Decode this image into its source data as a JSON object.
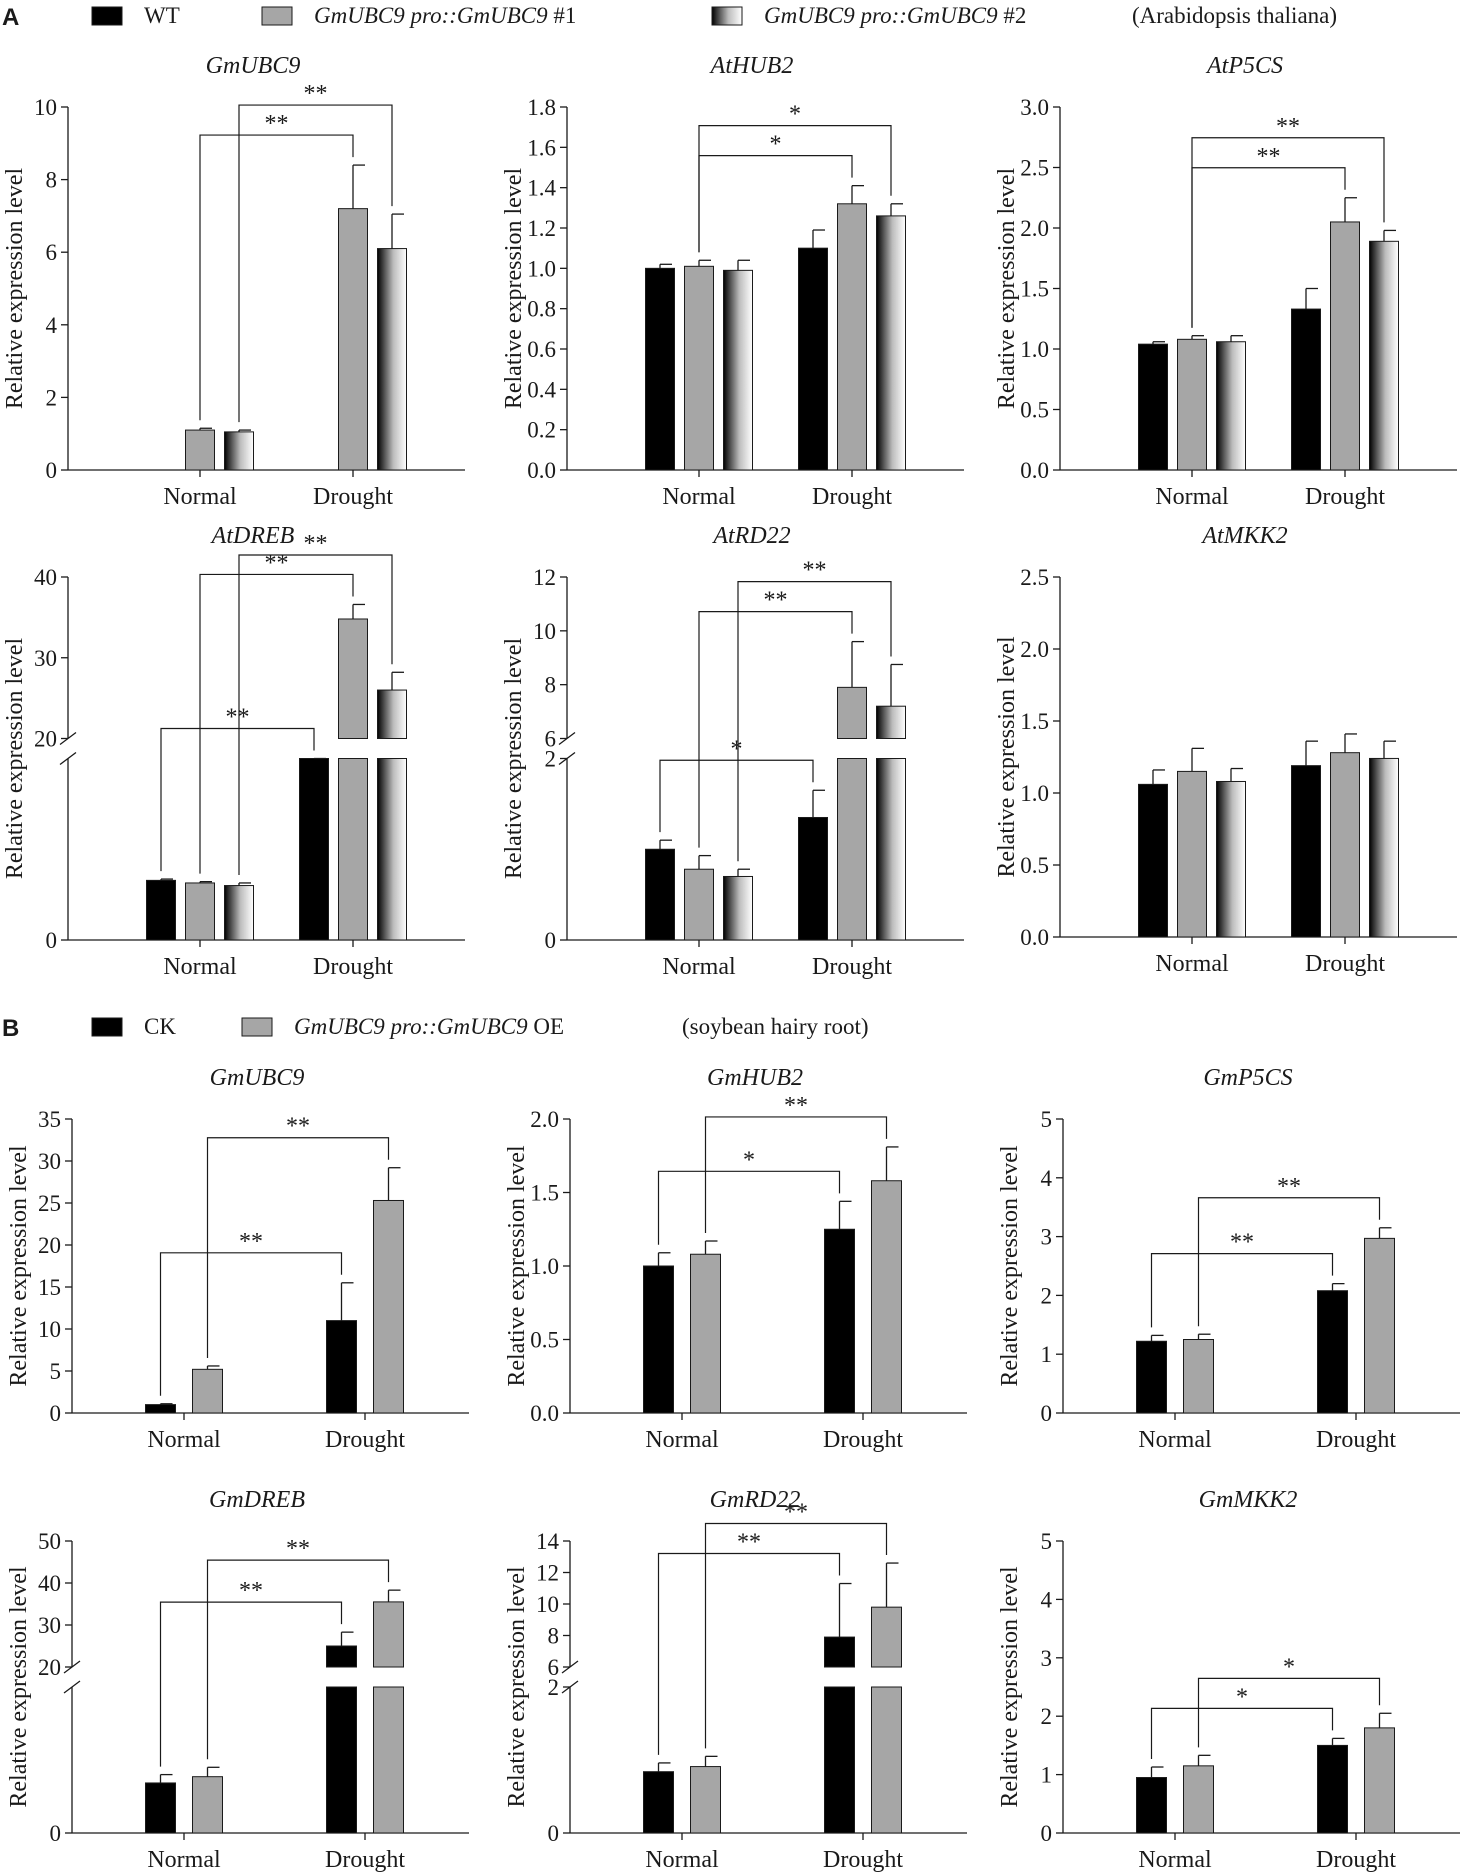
{
  "figure": {
    "panel_a_letter": "A",
    "panel_b_letter": "B",
    "legend_a": [
      {
        "label": "WT",
        "italic": false,
        "fill": "black"
      },
      {
        "label": "GmUBC9 pro::GmUBC9",
        "suffix": " #1",
        "italic": true,
        "fill": "gray"
      },
      {
        "label": "GmUBC9 pro::GmUBC9",
        "suffix": " #2",
        "italic": true,
        "fill": "gradient"
      }
    ],
    "legend_a_note": "(Arabidopsis thaliana)",
    "legend_b": [
      {
        "label": "CK",
        "italic": false,
        "fill": "black"
      },
      {
        "label": "GmUBC9 pro::GmUBC9",
        "suffix": " OE",
        "italic": true,
        "fill": "gray"
      }
    ],
    "legend_b_note": "(soybean hairy root)",
    "colors": {
      "black": "#000000",
      "gray": "#a6a6a6",
      "axis": "#1a1a1a"
    }
  },
  "chart_data": [
    {
      "panel": "A",
      "type": "bar",
      "title": "GmUBC9",
      "ylabel": "Relative expression level",
      "categories": [
        "Normal",
        "Drought"
      ],
      "ylim": [
        0,
        10
      ],
      "yticks": [
        0,
        2,
        4,
        6,
        8,
        10
      ],
      "series": [
        {
          "name": "WT",
          "values": [
            0,
            0
          ],
          "errors": [
            0,
            0
          ]
        },
        {
          "name": "GmUBC9 pro::GmUBC9 #1",
          "values": [
            1.1,
            7.2
          ],
          "errors": [
            0.05,
            1.2
          ]
        },
        {
          "name": "GmUBC9 pro::GmUBC9 #2",
          "values": [
            1.05,
            6.1
          ],
          "errors": [
            0.05,
            0.95
          ]
        }
      ],
      "significance": [
        {
          "from": [
            0,
            1
          ],
          "to": [
            1,
            1
          ],
          "label": "**"
        },
        {
          "from": [
            0,
            2
          ],
          "to": [
            1,
            2
          ],
          "label": "**"
        }
      ]
    },
    {
      "panel": "A",
      "type": "bar",
      "title": "AtHUB2",
      "ylabel": "Relative expression level",
      "categories": [
        "Normal",
        "Drought"
      ],
      "ylim": [
        0,
        1.8
      ],
      "yticks": [
        0.0,
        0.2,
        0.4,
        0.6,
        0.8,
        1.0,
        1.2,
        1.4,
        1.6,
        1.8
      ],
      "series": [
        {
          "name": "WT",
          "values": [
            1.0,
            1.1
          ],
          "errors": [
            0.02,
            0.09
          ]
        },
        {
          "name": "GmUBC9 pro::GmUBC9 #1",
          "values": [
            1.01,
            1.32
          ],
          "errors": [
            0.03,
            0.09
          ]
        },
        {
          "name": "GmUBC9 pro::GmUBC9 #2",
          "values": [
            0.99,
            1.26
          ],
          "errors": [
            0.05,
            0.06
          ]
        }
      ],
      "significance": [
        {
          "from": [
            0,
            1
          ],
          "to": [
            1,
            1
          ],
          "label": "*"
        },
        {
          "from": [
            0,
            1
          ],
          "to": [
            1,
            2
          ],
          "label": "*"
        }
      ]
    },
    {
      "panel": "A",
      "type": "bar",
      "title": "AtP5CS",
      "ylabel": "Relative expression level",
      "categories": [
        "Normal",
        "Drought"
      ],
      "ylim": [
        0,
        3.0
      ],
      "yticks": [
        0.0,
        0.5,
        1.0,
        1.5,
        2.0,
        2.5,
        3.0
      ],
      "series": [
        {
          "name": "WT",
          "values": [
            1.04,
            1.33
          ],
          "errors": [
            0.02,
            0.17
          ]
        },
        {
          "name": "GmUBC9 pro::GmUBC9 #1",
          "values": [
            1.08,
            2.05
          ],
          "errors": [
            0.03,
            0.2
          ]
        },
        {
          "name": "GmUBC9 pro::GmUBC9 #2",
          "values": [
            1.06,
            1.89
          ],
          "errors": [
            0.05,
            0.09
          ]
        }
      ],
      "significance": [
        {
          "from": [
            0,
            1
          ],
          "to": [
            1,
            1
          ],
          "label": "**"
        },
        {
          "from": [
            0,
            1
          ],
          "to": [
            1,
            2
          ],
          "label": "**"
        }
      ]
    },
    {
      "panel": "A",
      "type": "bar",
      "title": "AtDREB",
      "ylabel": "Relative expression level",
      "categories": [
        "Normal",
        "Drought"
      ],
      "ylim": [
        0,
        40
      ],
      "yticks": [
        0,
        20,
        30,
        40
      ],
      "axis_break": [
        7,
        20
      ],
      "series": [
        {
          "name": "WT",
          "values": [
            2.3,
            7.0
          ],
          "errors": [
            0.05,
            0.05
          ]
        },
        {
          "name": "GmUBC9 pro::GmUBC9 #1",
          "values": [
            2.2,
            34.8
          ],
          "errors": [
            0.05,
            1.8
          ]
        },
        {
          "name": "GmUBC9 pro::GmUBC9 #2",
          "values": [
            2.1,
            26.0
          ],
          "errors": [
            0.1,
            2.2
          ]
        }
      ],
      "significance": [
        {
          "from": [
            0,
            0
          ],
          "to": [
            1,
            0
          ],
          "label": "**"
        },
        {
          "from": [
            0,
            1
          ],
          "to": [
            1,
            1
          ],
          "label": "**"
        },
        {
          "from": [
            0,
            2
          ],
          "to": [
            1,
            2
          ],
          "label": "**"
        }
      ]
    },
    {
      "panel": "A",
      "type": "bar",
      "title": "AtRD22",
      "ylabel": "Relative expression level",
      "categories": [
        "Normal",
        "Drought"
      ],
      "ylim": [
        0,
        12
      ],
      "yticks": [
        0,
        2,
        6,
        8,
        10,
        12
      ],
      "axis_break": [
        2,
        6
      ],
      "series": [
        {
          "name": "WT",
          "values": [
            1.0,
            1.35
          ],
          "errors": [
            0.1,
            0.3
          ]
        },
        {
          "name": "GmUBC9 pro::GmUBC9 #1",
          "values": [
            0.78,
            7.9
          ],
          "errors": [
            0.15,
            1.7
          ]
        },
        {
          "name": "GmUBC9 pro::GmUBC9 #2",
          "values": [
            0.7,
            7.2
          ],
          "errors": [
            0.08,
            1.55
          ]
        }
      ],
      "significance": [
        {
          "from": [
            0,
            0
          ],
          "to": [
            1,
            0
          ],
          "label": "*"
        },
        {
          "from": [
            0,
            1
          ],
          "to": [
            1,
            1
          ],
          "label": "**"
        },
        {
          "from": [
            0,
            2
          ],
          "to": [
            1,
            2
          ],
          "label": "**"
        }
      ]
    },
    {
      "panel": "A",
      "type": "bar",
      "title": "AtMKK2",
      "ylabel": "Relative expression level",
      "categories": [
        "Normal",
        "Drought"
      ],
      "ylim": [
        0,
        2.5
      ],
      "yticks": [
        0.0,
        0.5,
        1.0,
        1.5,
        2.0,
        2.5
      ],
      "series": [
        {
          "name": "WT",
          "values": [
            1.06,
            1.19
          ],
          "errors": [
            0.1,
            0.17
          ]
        },
        {
          "name": "GmUBC9 pro::GmUBC9 #1",
          "values": [
            1.15,
            1.28
          ],
          "errors": [
            0.16,
            0.13
          ]
        },
        {
          "name": "GmUBC9 pro::GmUBC9 #2",
          "values": [
            1.08,
            1.24
          ],
          "errors": [
            0.09,
            0.12
          ]
        }
      ],
      "significance": []
    },
    {
      "panel": "B",
      "type": "bar",
      "title": "GmUBC9",
      "ylabel": "Relative expression level",
      "categories": [
        "Normal",
        "Drought"
      ],
      "ylim": [
        0,
        35
      ],
      "yticks": [
        0,
        5,
        10,
        15,
        20,
        25,
        30,
        35
      ],
      "series": [
        {
          "name": "CK",
          "values": [
            1.0,
            11.0
          ],
          "errors": [
            0.1,
            4.5
          ]
        },
        {
          "name": "GmUBC9 pro::GmUBC9 OE",
          "values": [
            5.2,
            25.3
          ],
          "errors": [
            0.4,
            3.9
          ]
        }
      ],
      "significance": [
        {
          "from": [
            0,
            0
          ],
          "to": [
            1,
            0
          ],
          "label": "**"
        },
        {
          "from": [
            0,
            1
          ],
          "to": [
            1,
            1
          ],
          "label": "**"
        }
      ]
    },
    {
      "panel": "B",
      "type": "bar",
      "title": "GmHUB2",
      "ylabel": "Relative expression level",
      "categories": [
        "Normal",
        "Drought"
      ],
      "ylim": [
        0,
        2.0
      ],
      "yticks": [
        0.0,
        0.5,
        1.0,
        1.5,
        2.0
      ],
      "series": [
        {
          "name": "CK",
          "values": [
            1.0,
            1.25
          ],
          "errors": [
            0.09,
            0.19
          ]
        },
        {
          "name": "GmUBC9 pro::GmUBC9 OE",
          "values": [
            1.08,
            1.58
          ],
          "errors": [
            0.09,
            0.23
          ]
        }
      ],
      "significance": [
        {
          "from": [
            0,
            0
          ],
          "to": [
            1,
            0
          ],
          "label": "*"
        },
        {
          "from": [
            0,
            1
          ],
          "to": [
            1,
            1
          ],
          "label": "**"
        }
      ]
    },
    {
      "panel": "B",
      "type": "bar",
      "title": "GmP5CS",
      "ylabel": "Relative expression level",
      "categories": [
        "Normal",
        "Drought"
      ],
      "ylim": [
        0,
        5
      ],
      "yticks": [
        0,
        1,
        2,
        3,
        4,
        5
      ],
      "series": [
        {
          "name": "CK",
          "values": [
            1.22,
            2.08
          ],
          "errors": [
            0.1,
            0.12
          ]
        },
        {
          "name": "GmUBC9 pro::GmUBC9 OE",
          "values": [
            1.25,
            2.97
          ],
          "errors": [
            0.09,
            0.18
          ]
        }
      ],
      "significance": [
        {
          "from": [
            0,
            0
          ],
          "to": [
            1,
            0
          ],
          "label": "**"
        },
        {
          "from": [
            0,
            1
          ],
          "to": [
            1,
            1
          ],
          "label": "**"
        }
      ]
    },
    {
      "panel": "B",
      "type": "bar",
      "title": "GmDREB",
      "ylabel": "Relative expression level",
      "categories": [
        "Normal",
        "Drought"
      ],
      "ylim": [
        0,
        50
      ],
      "yticks": [
        0,
        20,
        30,
        40,
        50
      ],
      "axis_break": [
        7,
        20
      ],
      "series": [
        {
          "name": "CK",
          "values": [
            2.4,
            25.0
          ],
          "errors": [
            0.4,
            3.3
          ]
        },
        {
          "name": "GmUBC9 pro::GmUBC9 OE",
          "values": [
            2.7,
            35.5
          ],
          "errors": [
            0.45,
            2.8
          ]
        }
      ],
      "significance": [
        {
          "from": [
            0,
            0
          ],
          "to": [
            1,
            0
          ],
          "label": "**"
        },
        {
          "from": [
            0,
            1
          ],
          "to": [
            1,
            1
          ],
          "label": "**"
        }
      ]
    },
    {
      "panel": "B",
      "type": "bar",
      "title": "GmRD22",
      "ylabel": "Relative expression level",
      "categories": [
        "Normal",
        "Drought"
      ],
      "ylim": [
        0,
        14
      ],
      "yticks": [
        0,
        2,
        6,
        8,
        10,
        12,
        14
      ],
      "axis_break": [
        2,
        6
      ],
      "series": [
        {
          "name": "CK",
          "values": [
            0.84,
            7.9
          ],
          "errors": [
            0.12,
            3.4
          ]
        },
        {
          "name": "GmUBC9 pro::GmUBC9 OE",
          "values": [
            0.91,
            9.8
          ],
          "errors": [
            0.14,
            2.8
          ]
        }
      ],
      "significance": [
        {
          "from": [
            0,
            0
          ],
          "to": [
            1,
            0
          ],
          "label": "**"
        },
        {
          "from": [
            0,
            1
          ],
          "to": [
            1,
            1
          ],
          "label": "**"
        }
      ]
    },
    {
      "panel": "B",
      "type": "bar",
      "title": "GmMKK2",
      "ylabel": "Relative expression level",
      "categories": [
        "Normal",
        "Drought"
      ],
      "ylim": [
        0,
        5
      ],
      "yticks": [
        0,
        1,
        2,
        3,
        4,
        5
      ],
      "series": [
        {
          "name": "CK",
          "values": [
            0.95,
            1.5
          ],
          "errors": [
            0.18,
            0.12
          ]
        },
        {
          "name": "GmUBC9 pro::GmUBC9 OE",
          "values": [
            1.15,
            1.8
          ],
          "errors": [
            0.18,
            0.25
          ]
        }
      ],
      "significance": [
        {
          "from": [
            0,
            0
          ],
          "to": [
            1,
            0
          ],
          "label": "*"
        },
        {
          "from": [
            0,
            1
          ],
          "to": [
            1,
            1
          ],
          "label": "*"
        }
      ]
    }
  ]
}
